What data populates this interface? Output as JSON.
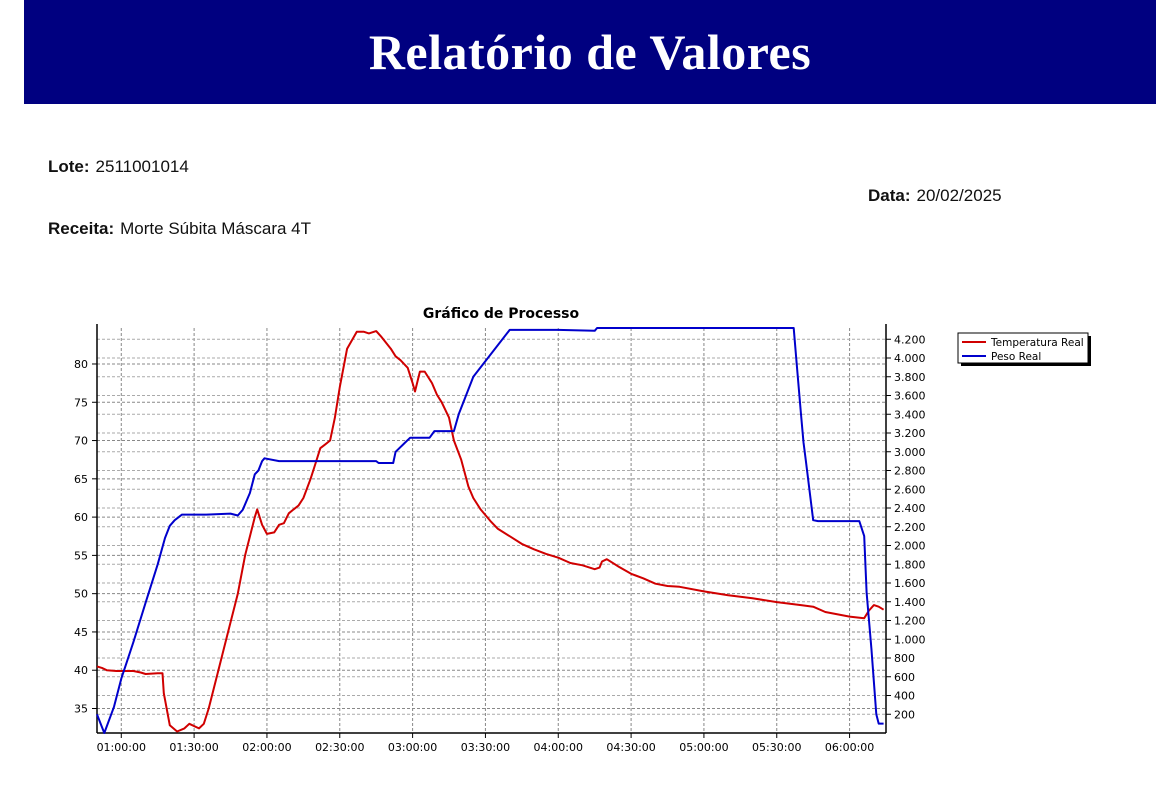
{
  "header": {
    "title": "Relatório de Valores"
  },
  "info": {
    "lote_label": "Lote:",
    "lote_value": "2511001014",
    "data_label": "Data:",
    "data_value": "20/02/2025",
    "receita_label": "Receita:",
    "receita_value": "Morte Súbita Máscara 4T"
  },
  "chart_data": {
    "type": "line",
    "title": "Gráfico de Processo",
    "xlabel": "",
    "ylabel": "",
    "y2label": "",
    "x_ticks": [
      "01:00:00",
      "01:30:00",
      "02:00:00",
      "02:30:00",
      "03:00:00",
      "03:30:00",
      "04:00:00",
      "04:30:00",
      "05:00:00",
      "05:30:00",
      "06:00:00"
    ],
    "xlim": [
      "00:50:00",
      "06:15:00"
    ],
    "y_ticks": [
      35,
      40,
      45,
      50,
      55,
      60,
      65,
      70,
      75,
      80
    ],
    "ylim": [
      31.8,
      84.7
    ],
    "y2_ticks": [
      "200",
      "400",
      "600",
      "800",
      "1.000",
      "1.200",
      "1.400",
      "1.600",
      "1.800",
      "2.000",
      "2.200",
      "2.400",
      "2.600",
      "2.800",
      "3.000",
      "3.200",
      "3.400",
      "3.600",
      "3.800",
      "4.000",
      "4.200"
    ],
    "y2lim": [
      0,
      4320
    ],
    "grid": true,
    "legend_position": "top-right-outside",
    "series": [
      {
        "name": "Temperatura Real",
        "axis": "left",
        "color": "#d00000",
        "x": [
          "00:50:00",
          "00:52:00",
          "00:54:00",
          "00:58:00",
          "01:05:00",
          "01:08:00",
          "01:10:00",
          "01:15:00",
          "01:17:00",
          "01:17:30",
          "01:20:00",
          "01:23:00",
          "01:26:00",
          "01:28:00",
          "01:32:00",
          "01:34:00",
          "01:36:00",
          "01:40:00",
          "01:44:00",
          "01:48:00",
          "01:51:00",
          "01:55:00",
          "01:56:00",
          "01:58:00",
          "02:00:00",
          "02:03:00",
          "02:05:00",
          "02:07:00",
          "02:09:00",
          "02:11:00",
          "02:13:00",
          "02:15:00",
          "02:18:00",
          "02:20:00",
          "02:22:00",
          "02:24:00",
          "02:26:00",
          "02:28:00",
          "02:30:00",
          "02:33:00",
          "02:37:00",
          "02:40:00",
          "02:42:00",
          "02:45:00",
          "02:47:00",
          "02:51:00",
          "02:53:00",
          "02:55:00",
          "02:58:00",
          "03:00:00",
          "03:01:00",
          "03:03:00",
          "03:05:00",
          "03:08:00",
          "03:10:00",
          "03:12:00",
          "03:15:00",
          "03:17:00",
          "03:20:00",
          "03:23:00",
          "03:25:00",
          "03:28:00",
          "03:32:00",
          "03:35:00",
          "03:40:00",
          "03:45:00",
          "03:50:00",
          "03:55:00",
          "04:00:00",
          "04:05:00",
          "04:10:00",
          "04:15:00",
          "04:17:00",
          "04:18:00",
          "04:20:00",
          "04:25:00",
          "04:30:00",
          "04:35:00",
          "04:40:00",
          "04:45:00",
          "04:50:00",
          "05:00:00",
          "05:10:00",
          "05:20:00",
          "05:30:00",
          "05:40:00",
          "05:45:00",
          "05:50:00",
          "06:00:00",
          "06:06:00",
          "06:08:00",
          "06:10:00",
          "06:12:00",
          "06:14:00"
        ],
        "y": [
          40.5,
          40.3,
          40.0,
          39.9,
          39.9,
          39.7,
          39.5,
          39.6,
          39.6,
          37.0,
          32.8,
          32.0,
          32.4,
          33.0,
          32.4,
          33.0,
          35.0,
          40.0,
          45.0,
          50.0,
          55.0,
          60.0,
          61.0,
          59.0,
          57.8,
          58.0,
          59.0,
          59.2,
          60.5,
          61.0,
          61.5,
          62.5,
          65.0,
          67.0,
          69.0,
          69.5,
          70.0,
          73.0,
          77.0,
          82.0,
          84.2,
          84.2,
          84.0,
          84.3,
          83.6,
          82.0,
          81.0,
          80.5,
          79.5,
          77.5,
          76.4,
          79.0,
          79.0,
          77.5,
          76.0,
          75.0,
          73.0,
          70.0,
          67.5,
          64.0,
          62.5,
          61.0,
          59.5,
          58.5,
          57.5,
          56.5,
          55.8,
          55.2,
          54.7,
          54.0,
          53.7,
          53.2,
          53.4,
          54.2,
          54.5,
          53.5,
          52.6,
          52.0,
          51.3,
          51.0,
          50.9,
          50.3,
          49.8,
          49.4,
          48.9,
          48.5,
          48.3,
          47.6,
          47.0,
          46.8,
          47.8,
          48.5,
          48.3,
          47.9
        ]
      },
      {
        "name": "Peso Real",
        "axis": "right",
        "color": "#0000cc",
        "x": [
          "00:50:00",
          "00:51:30",
          "00:53:00",
          "00:57:00",
          "01:00:00",
          "01:05:00",
          "01:10:00",
          "01:15:00",
          "01:18:00",
          "01:20:00",
          "01:22:00",
          "01:25:00",
          "01:35:00",
          "01:45:00",
          "01:48:00",
          "01:50:00",
          "01:53:00",
          "01:55:00",
          "01:56:30",
          "01:58:00",
          "01:59:00",
          "02:05:00",
          "02:15:00",
          "02:30:00",
          "02:45:00",
          "02:46:00",
          "02:52:00",
          "02:53:00",
          "02:57:00",
          "02:59:00",
          "03:07:00",
          "03:09:00",
          "03:13:00",
          "03:17:00",
          "03:19:00",
          "03:25:00",
          "03:40:00",
          "04:00:00",
          "04:15:00",
          "04:16:00",
          "04:30:00",
          "05:00:00",
          "05:30:00",
          "05:37:00",
          "05:38:00",
          "05:40:00",
          "05:41:00",
          "05:42:00",
          "05:45:00",
          "05:47:00",
          "05:55:00",
          "06:00:00",
          "06:04:00",
          "06:06:00",
          "06:07:00",
          "06:09:00",
          "06:11:00",
          "06:12:00",
          "06:14:00"
        ],
        "y": [
          200,
          100,
          0,
          280,
          580,
          970,
          1390,
          1800,
          2080,
          2210,
          2270,
          2330,
          2330,
          2340,
          2320,
          2380,
          2560,
          2760,
          2800,
          2900,
          2930,
          2900,
          2900,
          2900,
          2900,
          2880,
          2880,
          3000,
          3100,
          3150,
          3150,
          3220,
          3220,
          3220,
          3400,
          3800,
          4300,
          4300,
          4290,
          4320,
          4320,
          4320,
          4320,
          4320,
          4000,
          3400,
          3100,
          2900,
          2270,
          2260,
          2260,
          2260,
          2260,
          2100,
          1500,
          900,
          200,
          100,
          100
        ]
      }
    ]
  }
}
